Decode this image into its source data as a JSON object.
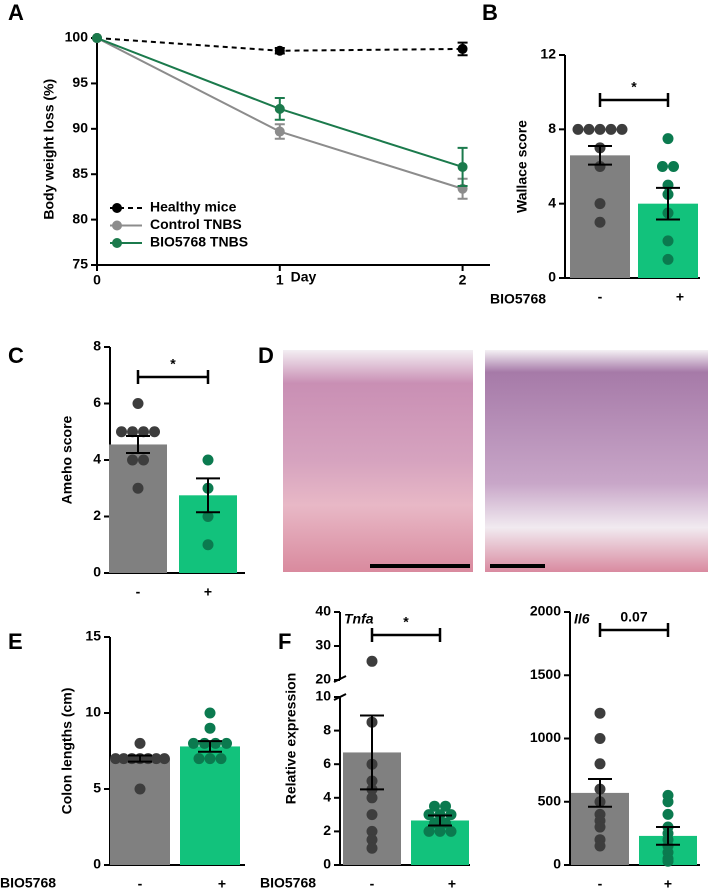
{
  "chart_data": [
    {
      "type": "line",
      "panel": "A",
      "xlabel": "Day",
      "ylabel": "Body weight loss (%)",
      "x": [
        0,
        1,
        2
      ],
      "xlim": [
        0,
        2.15
      ],
      "xticks": [
        0,
        1,
        2
      ],
      "ylim": [
        75,
        100.5
      ],
      "yticks": [
        75,
        80,
        85,
        90,
        95,
        100
      ],
      "series": [
        {
          "name": "Healthy mice",
          "color": "#000000",
          "dashed": true,
          "values": [
            100,
            98.6,
            98.8
          ],
          "errors": [
            0,
            0.3,
            0.7
          ]
        },
        {
          "name": "Control TNBS",
          "color": "#8c8c8c",
          "dashed": false,
          "values": [
            100,
            89.7,
            83.4
          ],
          "errors": [
            0,
            0.8,
            1.1
          ]
        },
        {
          "name": "BIO5768 TNBS",
          "color": "#1b7a4c",
          "dashed": false,
          "values": [
            100,
            92.2,
            85.8
          ],
          "errors": [
            0,
            1.2,
            2.1
          ]
        }
      ]
    },
    {
      "type": "bar",
      "panel": "B",
      "ylabel": "Wallace score",
      "group_label": "BIO5768",
      "significance": "*",
      "categories": [
        "-",
        "+"
      ],
      "values": [
        6.6,
        4.0
      ],
      "errors": [
        0.5,
        0.85
      ],
      "points": [
        [
          8,
          8,
          8,
          8,
          8,
          7,
          6,
          4,
          3
        ],
        [
          7.5,
          6,
          6,
          5,
          4.5,
          3.5,
          2,
          1
        ]
      ],
      "colors": [
        "#808080",
        "#12c27c"
      ],
      "point_colors": [
        "#3d3d3d",
        "#0b7a4f"
      ],
      "ylim": [
        0,
        12
      ],
      "yticks": [
        0,
        4,
        8,
        12
      ]
    },
    {
      "type": "bar",
      "panel": "C",
      "ylabel": "Ameho score",
      "significance": "*",
      "categories": [
        "-",
        "+"
      ],
      "values": [
        4.55,
        2.75
      ],
      "errors": [
        0.3,
        0.6
      ],
      "points": [
        [
          6,
          5,
          5,
          5,
          5,
          4,
          4,
          3
        ],
        [
          4,
          3,
          2,
          1
        ]
      ],
      "colors": [
        "#808080",
        "#12c27c"
      ],
      "point_colors": [
        "#3d3d3d",
        "#0b7a4f"
      ],
      "ylim": [
        0,
        8
      ],
      "yticks": [
        0,
        2,
        4,
        6,
        8
      ]
    },
    {
      "type": "image",
      "panel": "D"
    },
    {
      "type": "bar",
      "panel": "E",
      "ylabel": "Colon lengths (cm)",
      "group_label": "BIO5768",
      "categories": [
        "-",
        "+"
      ],
      "values": [
        7.0,
        7.8
      ],
      "errors": [
        0.2,
        0.35
      ],
      "points": [
        [
          8,
          7,
          7,
          7,
          7,
          7,
          7,
          7,
          5
        ],
        [
          10,
          9,
          8,
          8,
          8,
          8,
          7,
          7,
          7
        ]
      ],
      "colors": [
        "#808080",
        "#12c27c"
      ],
      "point_colors": [
        "#3d3d3d",
        "#0b7a4f"
      ],
      "ylim": [
        0,
        15
      ],
      "yticks": [
        0,
        5,
        10,
        15
      ]
    },
    {
      "type": "bar",
      "panel": "F",
      "ylabel": "Relative expression",
      "group_label": "BIO5768",
      "gene": "Tnfa",
      "significance": "*",
      "categories": [
        "-",
        "+"
      ],
      "values": [
        6.7,
        2.65
      ],
      "errors": [
        2.2,
        0.3
      ],
      "points": [
        [
          25.5,
          8.5,
          6,
          5,
          4.5,
          4,
          3,
          2,
          1.5,
          1
        ],
        [
          3.5,
          3.5,
          3,
          3,
          3,
          2.5,
          2.5,
          2,
          2,
          2
        ]
      ],
      "colors": [
        "#808080",
        "#12c27c"
      ],
      "point_colors": [
        "#3d3d3d",
        "#0b7a4f"
      ],
      "ylim": [
        0,
        40
      ],
      "ybreak": [
        10,
        20
      ],
      "yticks": [
        0,
        2,
        4,
        6,
        8,
        10,
        20,
        30,
        40
      ]
    },
    {
      "type": "bar",
      "gene": "Il6",
      "significance": "0.07",
      "categories": [
        "-",
        "+"
      ],
      "values": [
        570,
        230
      ],
      "errors": [
        110,
        70
      ],
      "points": [
        [
          1200,
          1000,
          800,
          600,
          500,
          400,
          350,
          300,
          200,
          150
        ],
        [
          550,
          500,
          400,
          300,
          250,
          200,
          150,
          100,
          50,
          30
        ]
      ],
      "colors": [
        "#808080",
        "#12c27c"
      ],
      "point_colors": [
        "#3d3d3d",
        "#0b7a4f"
      ],
      "ylim": [
        0,
        2000
      ],
      "yticks": [
        0,
        500,
        1000,
        1500,
        2000
      ]
    }
  ]
}
